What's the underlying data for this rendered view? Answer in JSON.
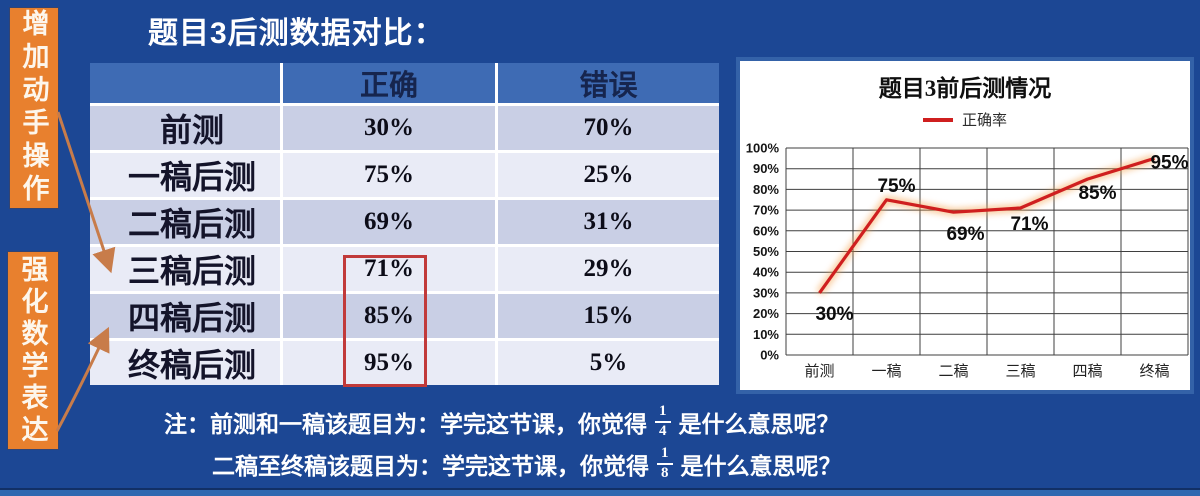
{
  "slide": {
    "title": "题目3后测数据对比：",
    "background_color": "#1c4794",
    "accent_orange": "#e8802e",
    "accent_red": "#c13a3a"
  },
  "side_labels": [
    {
      "text": "增加动手操作"
    },
    {
      "text": "强化数学表达"
    }
  ],
  "table": {
    "headers": [
      "",
      "正确",
      "错误"
    ],
    "rows": [
      {
        "label": "前测",
        "correct": "30%",
        "wrong": "70%"
      },
      {
        "label": "一稿后测",
        "correct": "75%",
        "wrong": "25%"
      },
      {
        "label": "二稿后测",
        "correct": "69%",
        "wrong": "31%"
      },
      {
        "label": "三稿后测",
        "correct": "71%",
        "wrong": "29%"
      },
      {
        "label": "四稿后测",
        "correct": "85%",
        "wrong": "15%"
      },
      {
        "label": "终稿后测",
        "correct": "95%",
        "wrong": "5%"
      }
    ]
  },
  "chart_data": {
    "type": "line",
    "title": "题目3前后测情况",
    "categories": [
      "前测",
      "一稿",
      "二稿",
      "三稿",
      "四稿",
      "终稿"
    ],
    "series": [
      {
        "name": "正确率",
        "values": [
          30,
          75,
          69,
          71,
          85,
          95
        ]
      }
    ],
    "value_labels": [
      "30%",
      "75%",
      "69%",
      "71%",
      "85%",
      "95%"
    ],
    "ylim": [
      0,
      100
    ],
    "ytick_step": 10,
    "ytick_labels": [
      "0%",
      "10%",
      "20%",
      "30%",
      "40%",
      "50%",
      "60%",
      "70%",
      "80%",
      "90%",
      "100%"
    ],
    "grid": true,
    "legend_position": "top",
    "line_color": "#cf1f1f",
    "glow_color": "#f4a24d",
    "xlabel": "",
    "ylabel": ""
  },
  "notes": {
    "line1_prefix": "注：前测和一稿该题目为：学完这节课，你觉得",
    "line1_frac_num": "1",
    "line1_frac_den": "4",
    "line1_suffix": "是什么意思呢？",
    "line2_prefix": "二稿至终稿该题目为：学完这节课，你觉得",
    "line2_frac_num": "1",
    "line2_frac_den": "8",
    "line2_suffix": "是什么意思呢？"
  }
}
